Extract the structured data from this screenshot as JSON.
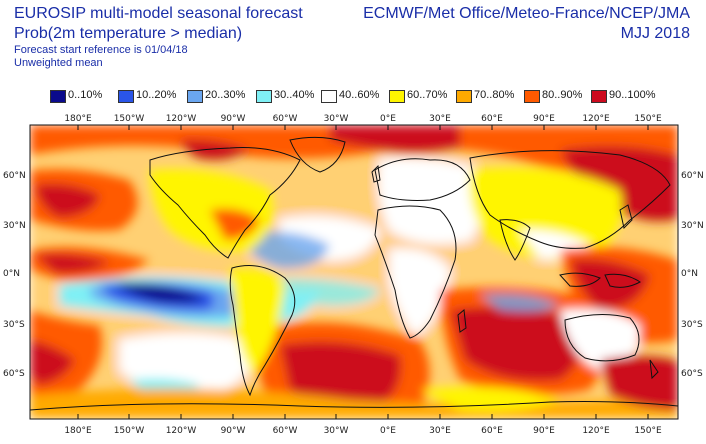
{
  "header": {
    "left_line1": "EUROSIP multi-model seasonal forecast",
    "left_line2": "Prob(2m temperature > median)",
    "left_line3": "Forecast start reference is 01/04/18",
    "left_line4": "Unweighted mean",
    "right_line1": "ECMWF/Met Office/Meteo-France/NCEP/JMA",
    "right_line2": "MJJ 2018"
  },
  "legend": [
    {
      "label": "0..10%",
      "color": "#0a0a8c"
    },
    {
      "label": "10..20%",
      "color": "#2a55e8"
    },
    {
      "label": "20..30%",
      "color": "#6aa6f0"
    },
    {
      "label": "30..40%",
      "color": "#7ff0f5"
    },
    {
      "label": "40..60%",
      "color": "#ffffff"
    },
    {
      "label": "60..70%",
      "color": "#fff500"
    },
    {
      "label": "70..80%",
      "color": "#ffaa00"
    },
    {
      "label": "80..90%",
      "color": "#ff5a00"
    },
    {
      "label": "90..100%",
      "color": "#cc0a1e"
    }
  ],
  "map": {
    "lon_labels": [
      "180°E",
      "150°W",
      "120°W",
      "90°W",
      "60°W",
      "30°W",
      "0°E",
      "30°E",
      "60°E",
      "90°E",
      "120°E",
      "150°E"
    ],
    "lat_labels_left": [
      "60°N",
      "30°N",
      "0°N",
      "30°S",
      "60°S"
    ],
    "lat_labels_right": [
      "60°N",
      "30°N",
      "0°N",
      "30°S",
      "60°S"
    ]
  }
}
